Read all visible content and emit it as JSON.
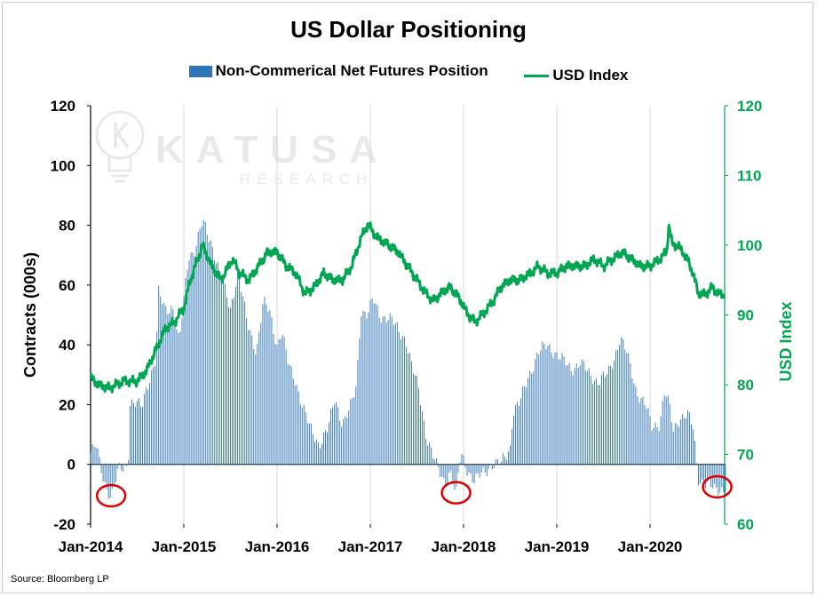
{
  "chart_data": {
    "type": "bar+line",
    "title": "US Dollar Positioning",
    "legend": [
      "Non-Commerical Net Futures Position",
      "USD Index"
    ],
    "legend_placement": "top-center",
    "grid": "vertical",
    "ylabel_left": "Contracts (000s)",
    "ylabel_right": "USD Index",
    "ylim_left": [
      -20,
      120
    ],
    "ylim_right": [
      60,
      120
    ],
    "left_ticks": [
      "120",
      "100",
      "80",
      "60",
      "40",
      "20",
      "0",
      "-20"
    ],
    "right_ticks": [
      "120",
      "110",
      "100",
      "90",
      "80",
      "70",
      "60"
    ],
    "x_ticks": [
      "Jan-2014",
      "Jan-2015",
      "Jan-2016",
      "Jan-2017",
      "Jan-2018",
      "Jan-2019",
      "Jan-2020"
    ],
    "x_range_years": [
      2014.0,
      2020.8
    ],
    "series": [
      {
        "name": "Non-Commerical Net Futures Position",
        "kind": "bar",
        "axis": "left",
        "color": "#2e75b6",
        "keypoints": [
          [
            2014.0,
            4
          ],
          [
            2014.06,
            6
          ],
          [
            2014.1,
            0
          ],
          [
            2014.15,
            -6
          ],
          [
            2014.22,
            -11
          ],
          [
            2014.3,
            -2
          ],
          [
            2014.4,
            0
          ],
          [
            2014.42,
            21
          ],
          [
            2014.55,
            19
          ],
          [
            2014.6,
            26
          ],
          [
            2014.7,
            35
          ],
          [
            2014.73,
            57
          ],
          [
            2014.8,
            52
          ],
          [
            2014.88,
            53
          ],
          [
            2014.95,
            40
          ],
          [
            2015.05,
            70
          ],
          [
            2015.12,
            72
          ],
          [
            2015.2,
            81
          ],
          [
            2015.3,
            74
          ],
          [
            2015.4,
            62
          ],
          [
            2015.5,
            52
          ],
          [
            2015.58,
            65
          ],
          [
            2015.68,
            47
          ],
          [
            2015.78,
            38
          ],
          [
            2015.85,
            54
          ],
          [
            2015.92,
            51
          ],
          [
            2016.0,
            40
          ],
          [
            2016.05,
            45
          ],
          [
            2016.12,
            33
          ],
          [
            2016.2,
            28
          ],
          [
            2016.27,
            20
          ],
          [
            2016.35,
            12
          ],
          [
            2016.45,
            7
          ],
          [
            2016.55,
            12
          ],
          [
            2016.62,
            22
          ],
          [
            2016.7,
            14
          ],
          [
            2016.78,
            18
          ],
          [
            2016.85,
            26
          ],
          [
            2016.9,
            52
          ],
          [
            2016.97,
            50
          ],
          [
            2017.03,
            55
          ],
          [
            2017.1,
            50
          ],
          [
            2017.2,
            49
          ],
          [
            2017.3,
            45
          ],
          [
            2017.38,
            42
          ],
          [
            2017.45,
            32
          ],
          [
            2017.52,
            25
          ],
          [
            2017.6,
            10
          ],
          [
            2017.7,
            0
          ],
          [
            2017.8,
            -6
          ],
          [
            2017.86,
            -2
          ],
          [
            2017.92,
            -11
          ],
          [
            2017.97,
            4
          ],
          [
            2018.05,
            -2
          ],
          [
            2018.12,
            -6
          ],
          [
            2018.2,
            -3
          ],
          [
            2018.3,
            0
          ],
          [
            2018.4,
            0
          ],
          [
            2018.5,
            6
          ],
          [
            2018.53,
            18
          ],
          [
            2018.6,
            20
          ],
          [
            2018.7,
            30
          ],
          [
            2018.8,
            37
          ],
          [
            2018.9,
            40
          ],
          [
            2018.97,
            38
          ],
          [
            2019.05,
            35
          ],
          [
            2019.15,
            32
          ],
          [
            2019.25,
            34
          ],
          [
            2019.35,
            30
          ],
          [
            2019.45,
            28
          ],
          [
            2019.55,
            30
          ],
          [
            2019.62,
            36
          ],
          [
            2019.68,
            43
          ],
          [
            2019.75,
            37
          ],
          [
            2019.85,
            25
          ],
          [
            2019.95,
            20
          ],
          [
            2020.02,
            12
          ],
          [
            2020.1,
            14
          ],
          [
            2020.16,
            25
          ],
          [
            2020.2,
            20
          ],
          [
            2020.25,
            11
          ],
          [
            2020.32,
            16
          ],
          [
            2020.4,
            17
          ],
          [
            2020.46,
            12
          ],
          [
            2020.5,
            0
          ],
          [
            2020.52,
            -5
          ],
          [
            2020.6,
            -6
          ],
          [
            2020.7,
            -9
          ],
          [
            2020.78,
            -8
          ],
          [
            2020.8,
            -8
          ]
        ]
      },
      {
        "name": "USD Index",
        "kind": "line",
        "axis": "right",
        "color": "#00a651",
        "keypoints": [
          [
            2014.0,
            81
          ],
          [
            2014.08,
            80
          ],
          [
            2014.2,
            79.5
          ],
          [
            2014.35,
            80.5
          ],
          [
            2014.5,
            80.5
          ],
          [
            2014.6,
            82
          ],
          [
            2014.7,
            85
          ],
          [
            2014.8,
            88
          ],
          [
            2014.9,
            89
          ],
          [
            2015.0,
            91
          ],
          [
            2015.07,
            95
          ],
          [
            2015.15,
            98
          ],
          [
            2015.2,
            100
          ],
          [
            2015.3,
            97
          ],
          [
            2015.4,
            95
          ],
          [
            2015.52,
            98
          ],
          [
            2015.6,
            96
          ],
          [
            2015.7,
            95
          ],
          [
            2015.8,
            97
          ],
          [
            2015.9,
            99
          ],
          [
            2016.0,
            99
          ],
          [
            2016.1,
            97
          ],
          [
            2016.2,
            96
          ],
          [
            2016.3,
            93
          ],
          [
            2016.4,
            94
          ],
          [
            2016.5,
            96
          ],
          [
            2016.6,
            95
          ],
          [
            2016.7,
            95
          ],
          [
            2016.8,
            97
          ],
          [
            2016.9,
            101
          ],
          [
            2016.97,
            103
          ],
          [
            2017.08,
            101
          ],
          [
            2017.2,
            100
          ],
          [
            2017.3,
            99
          ],
          [
            2017.4,
            97
          ],
          [
            2017.5,
            95
          ],
          [
            2017.6,
            93
          ],
          [
            2017.68,
            92
          ],
          [
            2017.75,
            93
          ],
          [
            2017.85,
            94
          ],
          [
            2017.92,
            93
          ],
          [
            2017.97,
            92
          ],
          [
            2018.05,
            90
          ],
          [
            2018.12,
            89
          ],
          [
            2018.2,
            90
          ],
          [
            2018.32,
            92
          ],
          [
            2018.4,
            94
          ],
          [
            2018.5,
            95
          ],
          [
            2018.6,
            95
          ],
          [
            2018.72,
            96
          ],
          [
            2018.8,
            97
          ],
          [
            2018.9,
            96
          ],
          [
            2019.0,
            96
          ],
          [
            2019.1,
            97
          ],
          [
            2019.2,
            97
          ],
          [
            2019.3,
            97
          ],
          [
            2019.4,
            98
          ],
          [
            2019.5,
            97
          ],
          [
            2019.6,
            98
          ],
          [
            2019.7,
            99
          ],
          [
            2019.8,
            98
          ],
          [
            2019.9,
            97
          ],
          [
            2020.0,
            97
          ],
          [
            2020.1,
            98
          ],
          [
            2020.18,
            99
          ],
          [
            2020.2,
            103
          ],
          [
            2020.24,
            100
          ],
          [
            2020.3,
            100
          ],
          [
            2020.4,
            98
          ],
          [
            2020.46,
            96
          ],
          [
            2020.52,
            93
          ],
          [
            2020.6,
            93
          ],
          [
            2020.67,
            94
          ],
          [
            2020.73,
            93
          ],
          [
            2020.78,
            93
          ],
          [
            2020.8,
            93
          ]
        ]
      }
    ]
  },
  "watermark": {
    "brand": "KATUSA",
    "sub": "RESEARCH",
    "icon": "lightbulb-k-icon"
  },
  "source": "Source: Bloomberg LP"
}
